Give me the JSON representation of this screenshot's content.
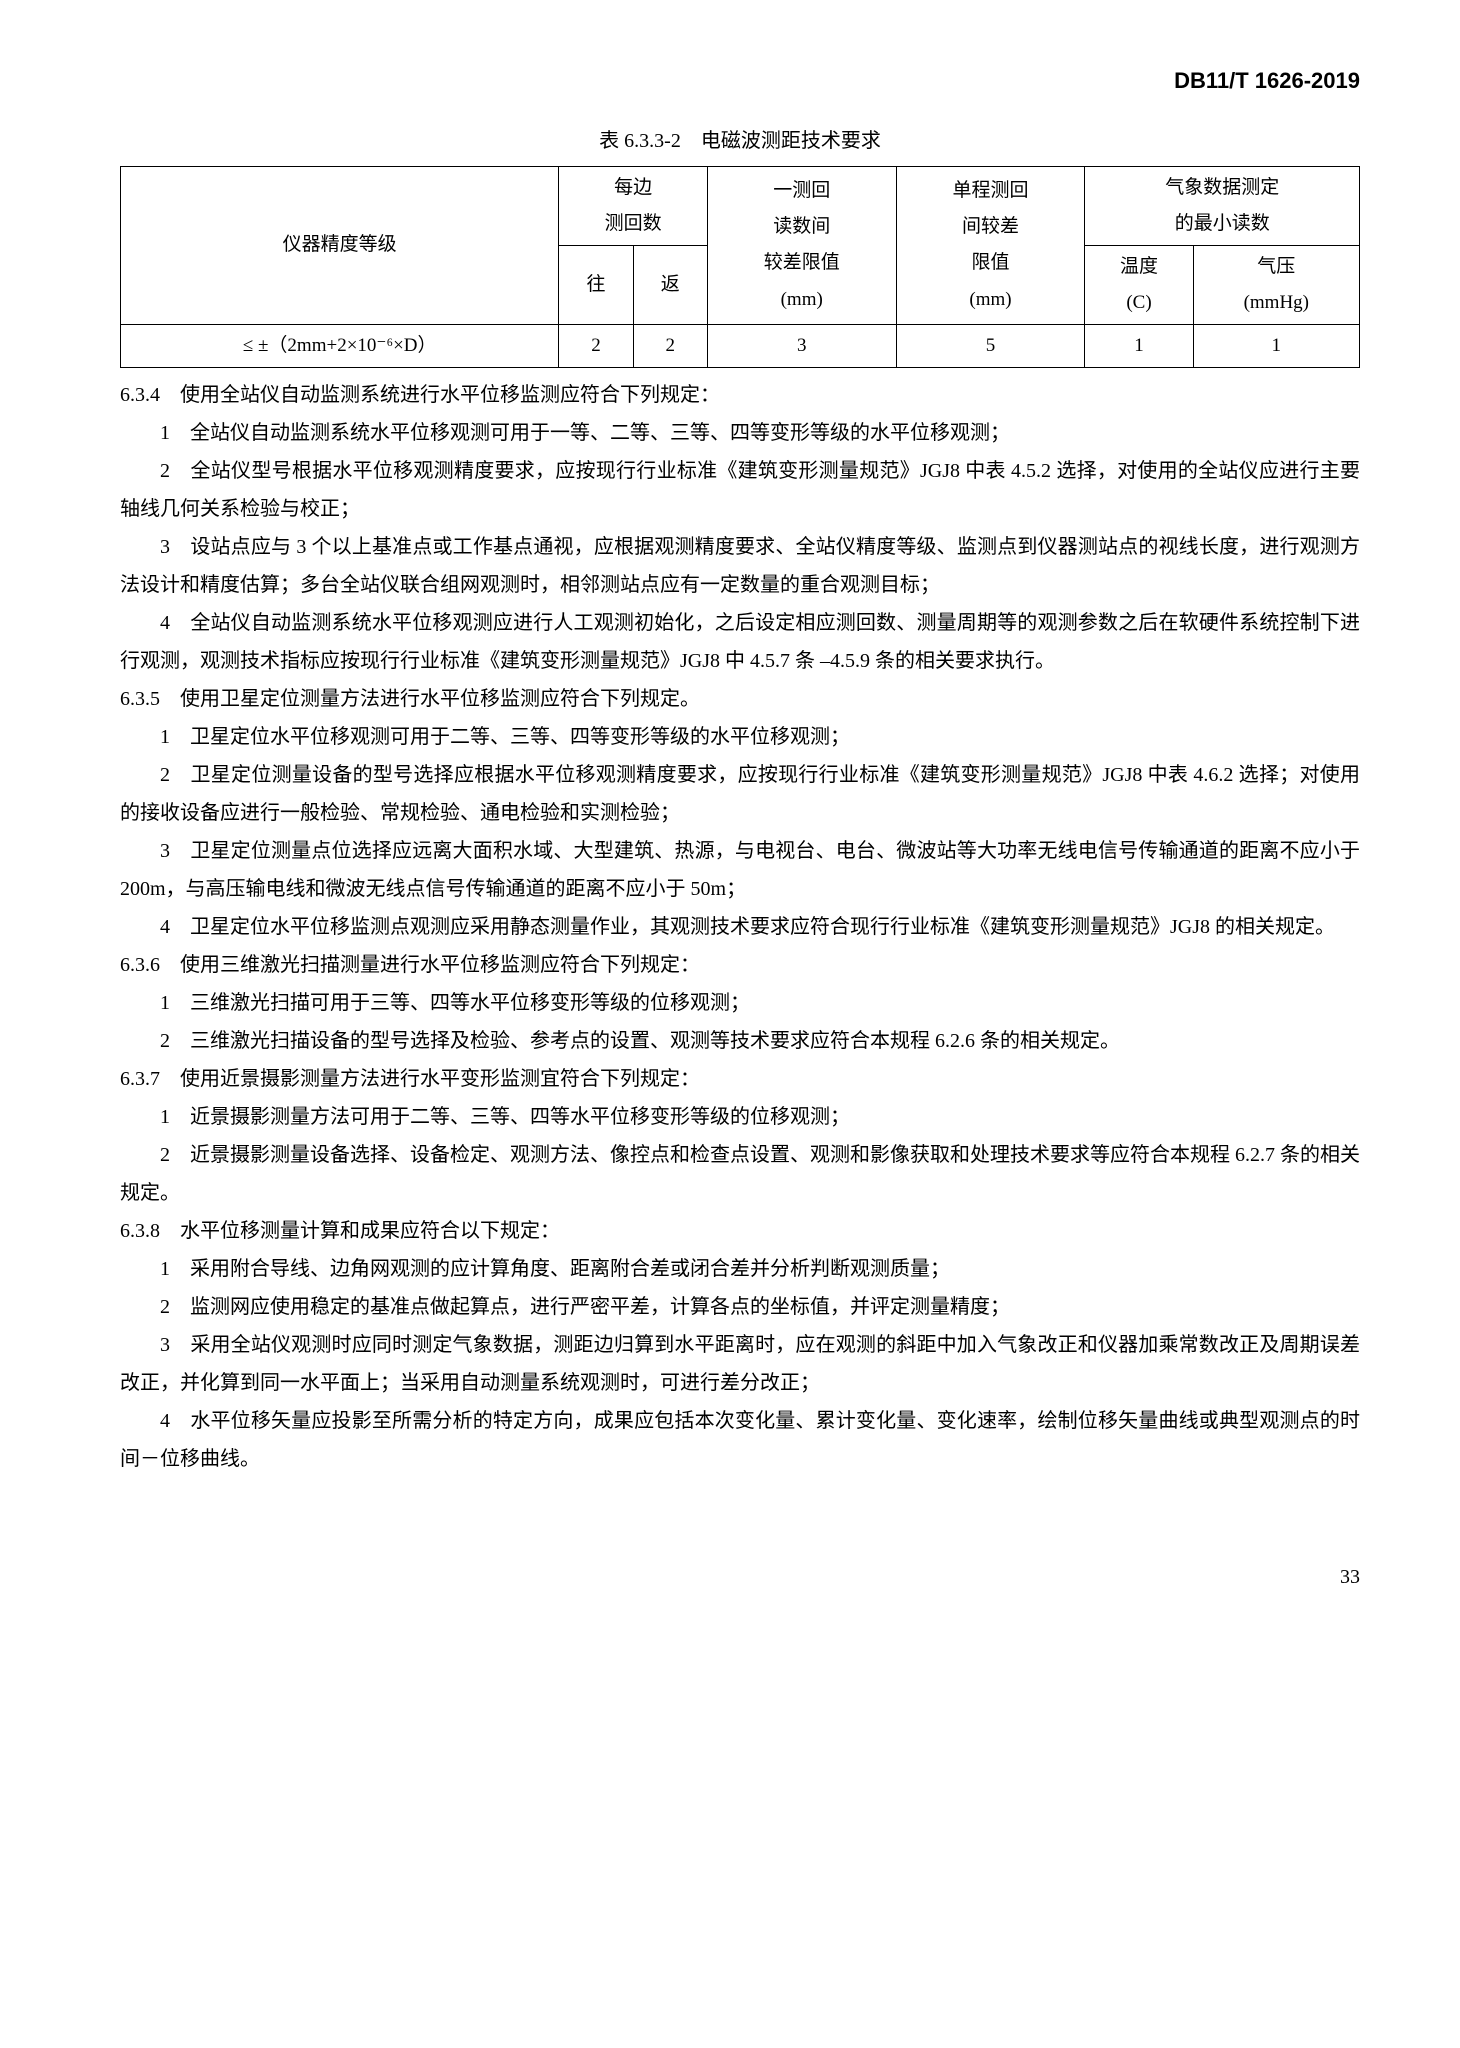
{
  "header": {
    "doc_code": "DB11/T 1626-2019"
  },
  "table": {
    "caption": "表 6.3.3-2　电磁波测距技术要求",
    "headers": {
      "col1": "仪器精度等级",
      "col2": "每边\n测回数",
      "col2a": "往",
      "col2b": "返",
      "col3": "一测回\n读数间\n较差限值\n(mm)",
      "col3_l1": "一测回",
      "col3_l2": "读数间",
      "col3_l3": "较差限值",
      "col3_l4": "(mm)",
      "col4_l1": "单程测回",
      "col4_l2": "间较差",
      "col4_l3": "限值",
      "col4_l4": "(mm)",
      "col5": "气象数据测定\n的最小读数",
      "col5_l1": "气象数据测定",
      "col5_l2": "的最小读数",
      "col5a_l1": "温度",
      "col5a_l2": "(C)",
      "col5b_l1": "气压",
      "col5b_l2": "(mmHg)"
    },
    "row": {
      "c1": "≤ ±（2mm+2×10⁻⁶×D）",
      "c2": "2",
      "c3": "2",
      "c4": "3",
      "c5": "5",
      "c6": "1",
      "c7": "1"
    }
  },
  "paragraphs": {
    "p634": "6.3.4　使用全站仪自动监测系统进行水平位移监测应符合下列规定：",
    "p634_1": "1　全站仪自动监测系统水平位移观测可用于一等、二等、三等、四等变形等级的水平位移观测；",
    "p634_2": "2　全站仪型号根据水平位移观测精度要求，应按现行行业标准《建筑变形测量规范》JGJ8 中表 4.5.2 选择，对使用的全站仪应进行主要轴线几何关系检验与校正；",
    "p634_3": "3　设站点应与 3 个以上基准点或工作基点通视，应根据观测精度要求、全站仪精度等级、监测点到仪器测站点的视线长度，进行观测方法设计和精度估算；多台全站仪联合组网观测时，相邻测站点应有一定数量的重合观测目标；",
    "p634_4": "4　全站仪自动监测系统水平位移观测应进行人工观测初始化，之后设定相应测回数、测量周期等的观测参数之后在软硬件系统控制下进行观测，观测技术指标应按现行行业标准《建筑变形测量规范》JGJ8 中 4.5.7 条 –4.5.9 条的相关要求执行。",
    "p635": "6.3.5　使用卫星定位测量方法进行水平位移监测应符合下列规定。",
    "p635_1": "1　卫星定位水平位移观测可用于二等、三等、四等变形等级的水平位移观测；",
    "p635_2": "2　卫星定位测量设备的型号选择应根据水平位移观测精度要求，应按现行行业标准《建筑变形测量规范》JGJ8 中表 4.6.2 选择；对使用的接收设备应进行一般检验、常规检验、通电检验和实测检验；",
    "p635_3": "3　卫星定位测量点位选择应远离大面积水域、大型建筑、热源，与电视台、电台、微波站等大功率无线电信号传输通道的距离不应小于 200m，与高压输电线和微波无线点信号传输通道的距离不应小于 50m；",
    "p635_4": "4　卫星定位水平位移监测点观测应采用静态测量作业，其观测技术要求应符合现行行业标准《建筑变形测量规范》JGJ8 的相关规定。",
    "p636": "6.3.6　使用三维激光扫描测量进行水平位移监测应符合下列规定：",
    "p636_1": "1　三维激光扫描可用于三等、四等水平位移变形等级的位移观测；",
    "p636_2": "2　三维激光扫描设备的型号选择及检验、参考点的设置、观测等技术要求应符合本规程 6.2.6 条的相关规定。",
    "p637": "6.3.7　使用近景摄影测量方法进行水平变形监测宜符合下列规定：",
    "p637_1": "1　近景摄影测量方法可用于二等、三等、四等水平位移变形等级的位移观测；",
    "p637_2": "2　近景摄影测量设备选择、设备检定、观测方法、像控点和检查点设置、观测和影像获取和处理技术要求等应符合本规程 6.2.7 条的相关规定。",
    "p638": "6.3.8　水平位移测量计算和成果应符合以下规定：",
    "p638_1": "1　采用附合导线、边角网观测的应计算角度、距离附合差或闭合差并分析判断观测质量；",
    "p638_2": "2　监测网应使用稳定的基准点做起算点，进行严密平差，计算各点的坐标值，并评定测量精度；",
    "p638_3": "3　采用全站仪观测时应同时测定气象数据，测距边归算到水平距离时，应在观测的斜距中加入气象改正和仪器加乘常数改正及周期误差改正，并化算到同一水平面上；当采用自动测量系统观测时，可进行差分改正；",
    "p638_4": "4　水平位移矢量应投影至所需分析的特定方向，成果应包括本次变化量、累计变化量、变化速率，绘制位移矢量曲线或典型观测点的时间－位移曲线。"
  },
  "page_number": "33"
}
